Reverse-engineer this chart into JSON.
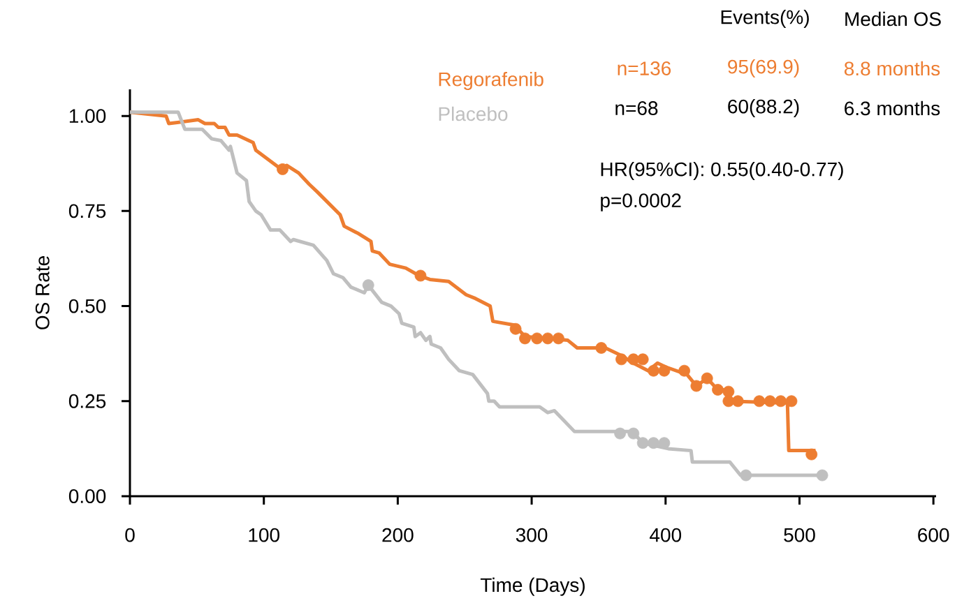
{
  "chart_data": {
    "type": "line",
    "xlabel": "Time (Days)",
    "ylabel": "OS Rate",
    "xlim": [
      0,
      602
    ],
    "ylim": [
      0,
      1.07
    ],
    "xticks": [
      0,
      100,
      200,
      300,
      400,
      500,
      600
    ],
    "yticks": [
      {
        "value": 0,
        "label": "0.00"
      },
      {
        "value": 0.25,
        "label": "0.25"
      },
      {
        "value": 0.5,
        "label": "0.50"
      },
      {
        "value": 0.75,
        "label": "0.75"
      },
      {
        "value": 1,
        "label": "1.00"
      }
    ],
    "legend": "top",
    "series": [
      {
        "name": "Regorafenib",
        "color": "#ed7d31",
        "x": [
          0,
          27,
          29,
          51,
          56,
          63,
          66,
          71,
          74,
          80,
          92,
          94,
          113,
          117,
          126,
          134,
          140,
          157,
          160,
          171,
          180,
          181,
          186,
          194,
          206,
          216,
          224,
          238,
          251,
          258,
          269,
          271,
          287,
          295,
          327,
          334,
          355,
          367,
          376,
          387,
          394,
          400,
          416,
          423,
          431,
          439,
          445,
          447,
          491,
          492,
          512
        ],
        "values": [
          1.01,
          1.0,
          0.98,
          0.99,
          0.98,
          0.98,
          0.97,
          0.97,
          0.95,
          0.95,
          0.93,
          0.91,
          0.86,
          0.87,
          0.85,
          0.82,
          0.8,
          0.74,
          0.71,
          0.69,
          0.67,
          0.645,
          0.64,
          0.61,
          0.6,
          0.58,
          0.57,
          0.565,
          0.53,
          0.52,
          0.5,
          0.46,
          0.45,
          0.42,
          0.41,
          0.39,
          0.39,
          0.37,
          0.35,
          0.33,
          0.35,
          0.34,
          0.32,
          0.29,
          0.31,
          0.28,
          0.28,
          0.25,
          0.245,
          0.12,
          0.12
        ]
      },
      {
        "name": "Placebo",
        "color": "#bfbfbf",
        "x": [
          0,
          36,
          41,
          54,
          61,
          68,
          74,
          75,
          80,
          87,
          89,
          94,
          98,
          105,
          112,
          120,
          122,
          137,
          147,
          152,
          159,
          165,
          175,
          178,
          188,
          195,
          201,
          203,
          212,
          213,
          217,
          221,
          224,
          225,
          232,
          238,
          246,
          256,
          267,
          268,
          272,
          276,
          306,
          312,
          317,
          332,
          366,
          376,
          379,
          383,
          402,
          419,
          420,
          448,
          456,
          517
        ],
        "values": [
          1.01,
          1.01,
          0.965,
          0.965,
          0.94,
          0.935,
          0.91,
          0.92,
          0.85,
          0.83,
          0.775,
          0.75,
          0.74,
          0.7,
          0.7,
          0.67,
          0.675,
          0.66,
          0.62,
          0.585,
          0.575,
          0.55,
          0.535,
          0.555,
          0.51,
          0.5,
          0.48,
          0.455,
          0.445,
          0.42,
          0.43,
          0.41,
          0.42,
          0.4,
          0.39,
          0.36,
          0.33,
          0.32,
          0.27,
          0.25,
          0.25,
          0.235,
          0.235,
          0.22,
          0.225,
          0.17,
          0.17,
          0.17,
          0.155,
          0.14,
          0.125,
          0.12,
          0.09,
          0.09,
          0.055,
          0.055
        ]
      },
      {
        "type": "scatter",
        "marker": "circle",
        "color": "#ed7d31",
        "x": [
          114,
          217,
          288,
          295,
          304,
          312,
          320,
          352,
          367,
          376,
          383,
          391,
          399,
          414,
          423,
          431,
          439,
          447,
          447,
          454,
          470,
          478,
          486,
          494,
          509
        ],
        "values": [
          0.86,
          0.58,
          0.44,
          0.415,
          0.415,
          0.415,
          0.415,
          0.39,
          0.36,
          0.36,
          0.36,
          0.33,
          0.33,
          0.33,
          0.29,
          0.31,
          0.28,
          0.275,
          0.25,
          0.25,
          0.25,
          0.25,
          0.25,
          0.25,
          0.11
        ]
      },
      {
        "type": "scatter",
        "marker": "circle",
        "color": "#bfbfbf",
        "x": [
          178,
          366,
          376,
          383,
          391,
          399,
          460,
          517
        ],
        "values": [
          0.555,
          0.165,
          0.165,
          0.14,
          0.14,
          0.14,
          0.055,
          0.055
        ]
      }
    ],
    "annotations": [
      "Events(%)",
      "Median OS",
      "n=136",
      "95(69.9)",
      "8.8 months",
      "n=68",
      "60(88.2)",
      "6.3 months",
      "HR(95%CI): 0.55(0.40-0.77)",
      "p=0.0002"
    ]
  }
}
